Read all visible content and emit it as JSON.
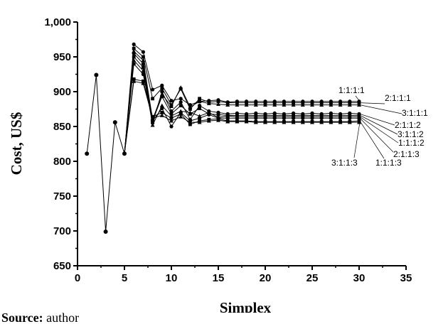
{
  "chart_data": {
    "type": "line",
    "xlabel": "Simplex",
    "ylabel": "Cost, US$",
    "xlim": [
      0,
      35
    ],
    "ylim": [
      650,
      1000
    ],
    "xticks": [
      "0",
      "5",
      "10",
      "15",
      "20",
      "25",
      "30",
      "35"
    ],
    "yticks": [
      "650",
      "700",
      "750",
      "800",
      "850",
      "900",
      "950",
      "1,000"
    ],
    "grid": false,
    "common_start": {
      "x": [
        1,
        2,
        3,
        4,
        5
      ],
      "y": [
        811,
        924,
        699,
        856,
        811
      ]
    },
    "series": [
      {
        "name": "1:1:1:1",
        "x": [
          5,
          6,
          7,
          8,
          9,
          10,
          11,
          12,
          13,
          14,
          15,
          16,
          17,
          18,
          19,
          20,
          21,
          22,
          23,
          24,
          25,
          26,
          27,
          28,
          29,
          30
        ],
        "y": [
          811,
          968,
          957,
          903,
          909,
          887,
          890,
          881,
          886,
          887,
          888,
          885,
          886,
          886,
          886,
          886,
          886,
          886,
          886,
          886,
          886,
          886,
          886,
          886,
          886,
          886
        ]
      },
      {
        "name": "2:1:1:1",
        "x": [
          5,
          6,
          7,
          8,
          9,
          10,
          11,
          12,
          13,
          14,
          15,
          16,
          17,
          18,
          19,
          20,
          21,
          22,
          23,
          24,
          25,
          26,
          27,
          28,
          29,
          30
        ],
        "y": [
          811,
          962,
          950,
          890,
          905,
          881,
          904,
          875,
          890,
          885,
          886,
          884,
          884,
          884,
          884,
          884,
          884,
          884,
          884,
          884,
          884,
          884,
          884,
          884,
          884,
          884
        ]
      },
      {
        "name": "3:1:1:1",
        "x": [
          5,
          6,
          7,
          8,
          9,
          10,
          11,
          12,
          13,
          14,
          15,
          16,
          17,
          18,
          19,
          20,
          21,
          22,
          23,
          24,
          25,
          26,
          27,
          28,
          29,
          30
        ],
        "y": [
          811,
          958,
          945,
          860,
          896,
          879,
          906,
          878,
          886,
          883,
          882,
          881,
          881,
          881,
          881,
          881,
          881,
          881,
          881,
          881,
          881,
          881,
          881,
          881,
          881,
          881
        ]
      },
      {
        "name": "2:1:1:2",
        "x": [
          5,
          6,
          7,
          8,
          9,
          10,
          11,
          12,
          13,
          14,
          15,
          16,
          17,
          18,
          19,
          20,
          21,
          22,
          23,
          24,
          25,
          26,
          27,
          28,
          29,
          30
        ],
        "y": [
          811,
          955,
          940,
          855,
          900,
          872,
          885,
          860,
          880,
          872,
          870,
          868,
          869,
          868,
          869,
          868,
          869,
          868,
          869,
          868,
          869,
          868,
          869,
          868,
          869,
          868
        ]
      },
      {
        "name": "3:1:1:2",
        "x": [
          5,
          6,
          7,
          8,
          9,
          10,
          11,
          12,
          13,
          14,
          15,
          16,
          17,
          18,
          19,
          20,
          21,
          22,
          23,
          24,
          25,
          26,
          27,
          28,
          29,
          30
        ],
        "y": [
          811,
          950,
          935,
          858,
          893,
          868,
          880,
          868,
          876,
          868,
          867,
          866,
          866,
          866,
          866,
          866,
          866,
          866,
          866,
          866,
          866,
          866,
          866,
          866,
          866,
          866
        ]
      },
      {
        "name": "1:1:1:2",
        "x": [
          5,
          6,
          7,
          8,
          9,
          10,
          11,
          12,
          13,
          14,
          15,
          16,
          17,
          18,
          19,
          20,
          21,
          22,
          23,
          24,
          25,
          26,
          27,
          28,
          29,
          30
        ],
        "y": [
          811,
          945,
          930,
          852,
          880,
          865,
          872,
          870,
          865,
          870,
          863,
          865,
          864,
          864,
          864,
          864,
          864,
          864,
          864,
          864,
          864,
          864,
          864,
          864,
          864,
          864
        ]
      },
      {
        "name": "2:1:1:3",
        "x": [
          5,
          6,
          7,
          8,
          9,
          10,
          11,
          12,
          13,
          14,
          15,
          16,
          17,
          18,
          19,
          20,
          21,
          22,
          23,
          24,
          25,
          26,
          27,
          28,
          29,
          30
        ],
        "y": [
          811,
          940,
          925,
          858,
          876,
          850,
          870,
          858,
          862,
          867,
          862,
          862,
          862,
          862,
          862,
          862,
          862,
          862,
          862,
          862,
          862,
          862,
          862,
          862,
          862,
          862
        ]
      },
      {
        "name": "1:1:1:3",
        "x": [
          5,
          6,
          7,
          8,
          9,
          10,
          11,
          12,
          13,
          14,
          15,
          16,
          17,
          18,
          19,
          20,
          21,
          22,
          23,
          24,
          25,
          26,
          27,
          28,
          29,
          30
        ],
        "y": [
          811,
          918,
          915,
          864,
          870,
          862,
          868,
          853,
          858,
          860,
          861,
          858,
          858,
          858,
          857,
          857,
          857,
          857,
          857,
          857,
          857,
          857,
          857,
          857,
          857,
          858
        ]
      },
      {
        "name": "3:1:1:3",
        "x": [
          5,
          6,
          7,
          8,
          9,
          10,
          11,
          12,
          13,
          14,
          15,
          16,
          17,
          18,
          19,
          20,
          21,
          22,
          23,
          24,
          25,
          26,
          27,
          28,
          29,
          30
        ],
        "y": [
          811,
          915,
          912,
          862,
          866,
          858,
          864,
          856,
          856,
          858,
          859,
          857,
          857,
          857,
          856,
          856,
          856,
          856,
          856,
          856,
          856,
          856,
          856,
          856,
          856,
          856
        ]
      }
    ]
  },
  "source": {
    "label": "Source:",
    "text": "author"
  }
}
